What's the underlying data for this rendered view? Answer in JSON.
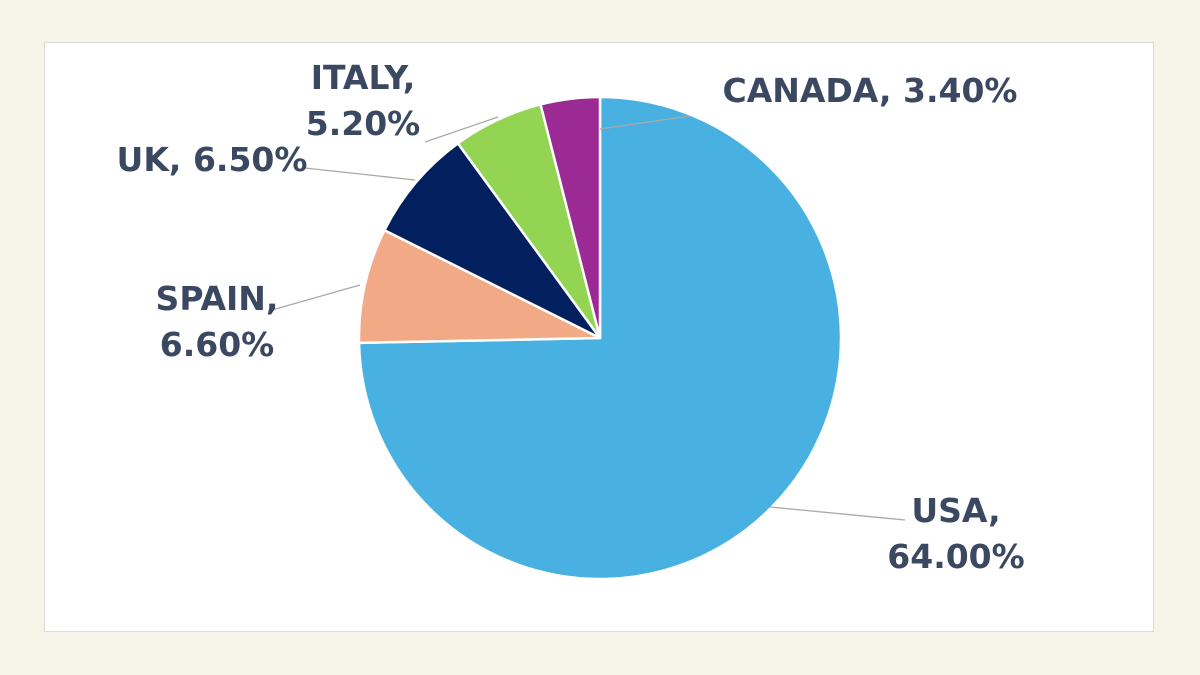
{
  "chart_data": {
    "type": "pie",
    "title": "",
    "slices": [
      {
        "name": "USA",
        "value": 64.0,
        "label_parts": [
          "USA,",
          "64.00%"
        ],
        "color": "#49b0e2"
      },
      {
        "name": "SPAIN",
        "value": 6.6,
        "label_parts": [
          "SPAIN,",
          "6.60%"
        ],
        "color": "#f1a986"
      },
      {
        "name": "UK",
        "value": 6.5,
        "label_parts": [
          "UK, 6.50%"
        ],
        "color": "#02205e"
      },
      {
        "name": "ITALY",
        "value": 5.2,
        "label_parts": [
          "ITALY,",
          "5.20%"
        ],
        "color": "#93d452"
      },
      {
        "name": "CANADA",
        "value": 3.4,
        "label_parts": [
          "CANADA, 3.40%"
        ],
        "color": "#9b2a94"
      }
    ],
    "start": "12 o'clock",
    "direction": "clockwise",
    "legend": "none",
    "label_color": "#3b4861"
  }
}
